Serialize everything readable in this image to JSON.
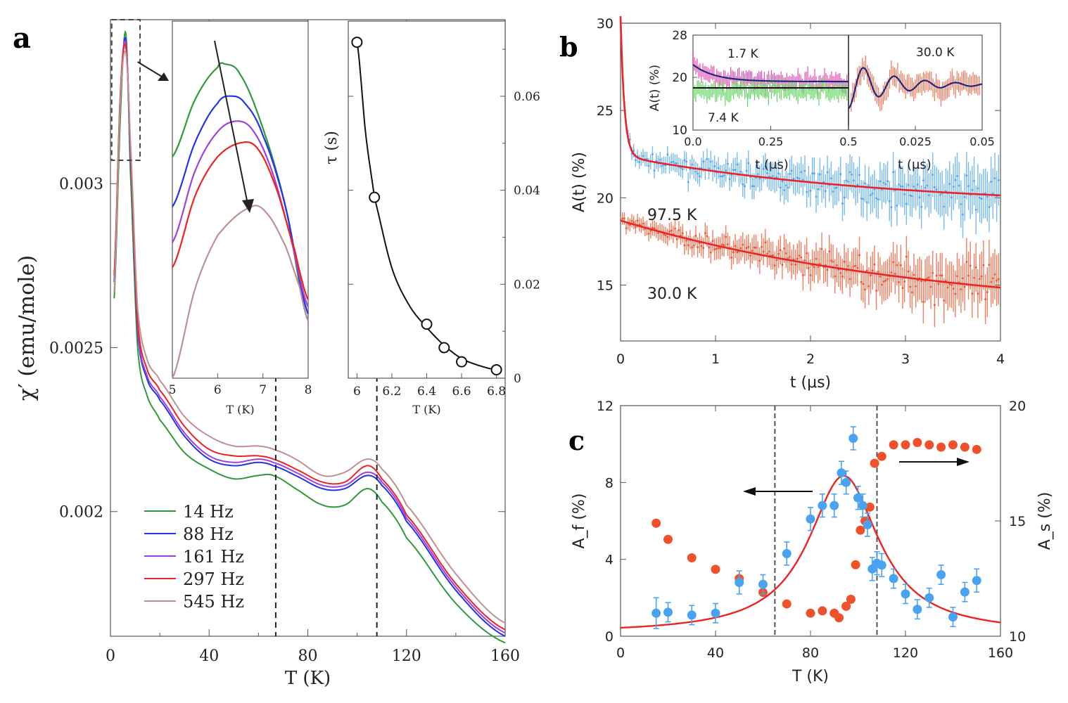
{
  "panel_labels": {
    "a": "a",
    "b": "b",
    "c": "c"
  },
  "colors": {
    "green": "#2e9a3a",
    "blue": "#2233ee",
    "purple": "#a040e0",
    "red": "#ee2222",
    "pink": "#c09090",
    "fit_red": "#ee2222",
    "mu_blue": "#4aa3f0",
    "mu_orange": "#f0502a",
    "mu_green": "#33cc33",
    "mu_magenta": "#e020a0",
    "navy": "#1a2a80"
  },
  "chart_data": [
    {
      "id": "a_main",
      "type": "line",
      "title": "",
      "xlabel": "T (K)",
      "ylabel": "χ′ (emu/mole)",
      "xlim": [
        0,
        160
      ],
      "ylim": [
        0.00162,
        0.0035
      ],
      "xticks": [
        0,
        40,
        80,
        120,
        160
      ],
      "xtick_labels": [
        "0",
        "40",
        "80",
        "120",
        "160"
      ],
      "yticks": [
        0.002,
        0.0025,
        0.003
      ],
      "ytick_labels": [
        "0.002",
        "0.0025",
        "0.003"
      ],
      "vlines": [
        67,
        108
      ],
      "legend_position": "lower-left",
      "series": [
        {
          "name": "14   Hz",
          "color": "#2e9a3a",
          "x": [
            1.5,
            4,
            6.2,
            8,
            11,
            15,
            20,
            30,
            40,
            50,
            60,
            66,
            75,
            86,
            95,
            104,
            110,
            120,
            140,
            160
          ],
          "y": [
            0.00265,
            0.0032,
            0.00346,
            0.00305,
            0.0025,
            0.00235,
            0.00228,
            0.00218,
            0.00213,
            0.0021,
            0.00211,
            0.00211,
            0.00207,
            0.00202,
            0.00202,
            0.00207,
            0.00203,
            0.00192,
            0.00172,
            0.0016
          ]
        },
        {
          "name": "88   Hz",
          "color": "#2233ee",
          "x": [
            1.5,
            4,
            6.2,
            8,
            11,
            15,
            20,
            30,
            40,
            50,
            60,
            66,
            75,
            86,
            95,
            104,
            110,
            120,
            140,
            160
          ],
          "y": [
            0.0027,
            0.00325,
            0.00344,
            0.0031,
            0.00255,
            0.0024,
            0.00234,
            0.00223,
            0.00216,
            0.00214,
            0.00215,
            0.00214,
            0.00211,
            0.00207,
            0.00207,
            0.00211,
            0.00208,
            0.00197,
            0.00176,
            0.00162
          ]
        },
        {
          "name": "161 Hz",
          "color": "#a040e0",
          "x": [
            1.5,
            4,
            6.2,
            8,
            11,
            15,
            20,
            30,
            40,
            50,
            60,
            66,
            75,
            86,
            95,
            104,
            110,
            120,
            140,
            160
          ],
          "y": [
            0.00272,
            0.00327,
            0.00343,
            0.00312,
            0.00256,
            0.00241,
            0.00235,
            0.00224,
            0.00217,
            0.00215,
            0.00216,
            0.00215,
            0.00212,
            0.00208,
            0.00208,
            0.00212,
            0.00209,
            0.00198,
            0.00177,
            0.00163
          ]
        },
        {
          "name": "297 Hz",
          "color": "#ee2222",
          "x": [
            1.5,
            4,
            6.2,
            8,
            11,
            15,
            20,
            30,
            40,
            50,
            60,
            66,
            75,
            86,
            95,
            104,
            110,
            120,
            140,
            160
          ],
          "y": [
            0.00272,
            0.00327,
            0.00342,
            0.00312,
            0.00258,
            0.00243,
            0.00237,
            0.00226,
            0.00219,
            0.00217,
            0.00217,
            0.00216,
            0.00213,
            0.00209,
            0.00209,
            0.00214,
            0.0021,
            0.00199,
            0.00178,
            0.00164
          ]
        },
        {
          "name": "545 Hz",
          "color": "#c09090",
          "x": [
            1.5,
            4,
            6.2,
            8,
            11,
            15,
            20,
            30,
            40,
            50,
            60,
            66,
            75,
            86,
            95,
            104,
            110,
            120,
            140,
            160
          ],
          "y": [
            0.00267,
            0.00325,
            0.0034,
            0.00314,
            0.00262,
            0.00246,
            0.0024,
            0.00229,
            0.00223,
            0.0022,
            0.0022,
            0.00219,
            0.00216,
            0.00211,
            0.00212,
            0.00216,
            0.00213,
            0.00202,
            0.00181,
            0.00166
          ]
        }
      ]
    },
    {
      "id": "a_inset_zoom",
      "type": "line",
      "xlabel": "T (K)",
      "xlim": [
        5,
        8
      ],
      "ylim": [
        0,
        1
      ],
      "xticks": [
        5,
        6,
        7,
        8
      ],
      "xtick_labels": [
        "5",
        "6",
        "7",
        "8"
      ],
      "series": [
        {
          "name": "14 Hz",
          "color": "#2e9a3a",
          "x": [
            5,
            5.5,
            6.0,
            6.15,
            6.5,
            7.0,
            7.5,
            8.0
          ],
          "y": [
            0.62,
            0.78,
            0.87,
            0.88,
            0.85,
            0.7,
            0.48,
            0.16
          ]
        },
        {
          "name": "88 Hz",
          "color": "#2233ee",
          "x": [
            5,
            5.5,
            6.0,
            6.3,
            6.6,
            7.0,
            7.5,
            8.0
          ],
          "y": [
            0.48,
            0.66,
            0.77,
            0.79,
            0.77,
            0.68,
            0.48,
            0.18
          ]
        },
        {
          "name": "161 Hz",
          "color": "#a040e0",
          "x": [
            5,
            5.5,
            6.0,
            6.45,
            6.8,
            7.2,
            7.6,
            8.0
          ],
          "y": [
            0.38,
            0.58,
            0.69,
            0.72,
            0.69,
            0.58,
            0.4,
            0.2
          ]
        },
        {
          "name": "297 Hz",
          "color": "#ee2222",
          "x": [
            5,
            5.5,
            6.0,
            6.55,
            6.9,
            7.3,
            7.7,
            8.0
          ],
          "y": [
            0.31,
            0.51,
            0.62,
            0.66,
            0.64,
            0.53,
            0.36,
            0.22
          ]
        },
        {
          "name": "545 Hz",
          "color": "#c09090",
          "x": [
            5,
            5.5,
            6.0,
            6.75,
            7.1,
            7.5,
            7.8,
            8.0
          ],
          "y": [
            0.0,
            0.25,
            0.4,
            0.48,
            0.46,
            0.37,
            0.26,
            0.16
          ]
        }
      ],
      "annotation": "arrow indicating increasing frequency"
    },
    {
      "id": "a_inset_tau",
      "type": "scatter",
      "xlabel": "T (K)",
      "ylabel": "τ (s)",
      "xlim": [
        5.95,
        6.85
      ],
      "ylim": [
        0,
        0.076
      ],
      "xticks": [
        6,
        6.2,
        6.4,
        6.6,
        6.8
      ],
      "xtick_labels": [
        "6",
        "6.2",
        "6.4",
        "6.6",
        "6.8"
      ],
      "yticks": [
        0,
        0.02,
        0.04,
        0.06
      ],
      "ytick_labels": [
        "0",
        "0.02",
        "0.04",
        "0.06"
      ],
      "points": {
        "x": [
          6.0,
          6.1,
          6.4,
          6.5,
          6.6,
          6.8
        ],
        "y": [
          0.0715,
          0.0385,
          0.0115,
          0.0065,
          0.0035,
          0.0018
        ]
      },
      "fit": {
        "x": [
          6.0,
          6.05,
          6.1,
          6.2,
          6.3,
          6.4,
          6.5,
          6.6,
          6.7,
          6.8
        ],
        "y": [
          0.0715,
          0.052,
          0.0385,
          0.0235,
          0.0155,
          0.0108,
          0.007,
          0.0042,
          0.0027,
          0.0018
        ]
      }
    },
    {
      "id": "b_main",
      "type": "scatter",
      "xlabel": "t (μs)",
      "ylabel": "A(t) (%)",
      "xlim": [
        0,
        4
      ],
      "ylim": [
        11.8,
        30
      ],
      "xticks": [
        0,
        1,
        2,
        3,
        4
      ],
      "xtick_labels": [
        "0",
        "1",
        "2",
        "3",
        "4"
      ],
      "yticks": [
        15,
        20,
        25,
        30
      ],
      "ytick_labels": [
        "15",
        "20",
        "25",
        "30"
      ],
      "series": [
        {
          "name": "97.5 K",
          "color": "#4aa3f0",
          "A": 19.4,
          "a1": 8.0,
          "l1": 25,
          "a2": 3.0,
          "l2": 0.35
        },
        {
          "name": "30.0 K",
          "color": "#f0502a",
          "A": 13.2,
          "a1": 0,
          "l1": 1,
          "a2": 5.5,
          "l2": 0.3
        }
      ],
      "labels": [
        {
          "text": "97.5 K"
        },
        {
          "text": "30.0 K"
        }
      ]
    },
    {
      "id": "b_inset_left",
      "type": "line",
      "xlabel": "t (μs)",
      "ylabel": "A(t) (%)",
      "xlim": [
        0,
        0.5
      ],
      "ylim": [
        10,
        28
      ],
      "xticks": [
        0,
        0.25,
        0.5
      ],
      "xtick_labels": [
        "0.0",
        "0.25",
        "0.5"
      ],
      "yticks": [
        10,
        20,
        28
      ],
      "ytick_labels": [
        "10",
        "20",
        "28"
      ],
      "labels": [
        "1.7 K",
        "7.4 K"
      ]
    },
    {
      "id": "b_inset_right",
      "type": "line",
      "xlabel": "t (μs)",
      "xlim": [
        0,
        0.05
      ],
      "ylim": [
        10,
        28
      ],
      "xticks": [
        0.025,
        0.05
      ],
      "xtick_labels": [
        "0.025",
        "0.05"
      ],
      "labels": [
        "30.0 K"
      ]
    },
    {
      "id": "c_main",
      "type": "scatter",
      "xlabel": "T (K)",
      "ylabel_left": "A_f (%)",
      "ylabel_right": "A_s (%)",
      "xlim": [
        0,
        160
      ],
      "ylim_left": [
        0,
        12
      ],
      "ylim_right": [
        10,
        20
      ],
      "xticks": [
        0,
        40,
        80,
        120,
        160
      ],
      "xtick_labels": [
        "0",
        "40",
        "80",
        "120",
        "160"
      ],
      "yticks_left": [
        0,
        4,
        8,
        12
      ],
      "ytick_labels_left": [
        "0",
        "4",
        "8",
        "12"
      ],
      "yticks_right": [
        10,
        15,
        20
      ],
      "ytick_labels_right": [
        "10",
        "15",
        "20"
      ],
      "vlines": [
        65,
        108
      ],
      "series_Af": {
        "color": "#4aa3f0",
        "x": [
          15,
          20,
          30,
          40,
          50,
          60,
          70,
          80,
          85,
          90,
          93,
          95,
          98,
          100,
          102,
          104,
          106,
          108,
          110,
          115,
          120,
          125,
          130,
          135,
          140,
          145,
          150
        ],
        "y": [
          1.2,
          1.25,
          1.1,
          1.2,
          2.8,
          2.7,
          4.3,
          6.1,
          6.8,
          6.8,
          8.5,
          8.0,
          10.3,
          7.2,
          6.8,
          5.8,
          3.5,
          3.8,
          3.7,
          3.0,
          2.2,
          1.4,
          2.0,
          3.2,
          1.0,
          2.3,
          2.9
        ],
        "err": [
          0.8,
          0.5,
          0.5,
          0.5,
          0.6,
          0.5,
          0.6,
          0.6,
          0.6,
          0.6,
          0.6,
          0.6,
          0.6,
          0.6,
          0.6,
          0.6,
          0.6,
          0.6,
          0.6,
          0.5,
          0.5,
          0.5,
          0.5,
          0.5,
          0.5,
          0.5,
          0.6
        ]
      },
      "fit_Af": {
        "color": "#ee2222",
        "model": "lorentzian",
        "x0": 94,
        "gamma": 18,
        "amp": 8.2
      },
      "series_As": {
        "color": "#f0502a",
        "x": [
          15,
          20,
          30,
          40,
          50,
          60,
          70,
          80,
          85,
          90,
          92,
          95,
          97,
          99,
          101,
          103,
          105,
          107,
          110,
          115,
          120,
          125,
          130,
          135,
          140,
          145,
          150
        ],
        "y": [
          14.9,
          14.2,
          13.4,
          12.9,
          12.5,
          11.9,
          11.4,
          11.0,
          11.1,
          11.0,
          10.8,
          11.3,
          11.6,
          13.1,
          14.6,
          15.0,
          15.6,
          17.5,
          17.8,
          18.3,
          18.3,
          18.4,
          18.3,
          18.2,
          18.3,
          18.2,
          18.1
        ]
      },
      "arrows": [
        "left arrow → A_f axis",
        "right arrow → A_s axis"
      ]
    }
  ]
}
